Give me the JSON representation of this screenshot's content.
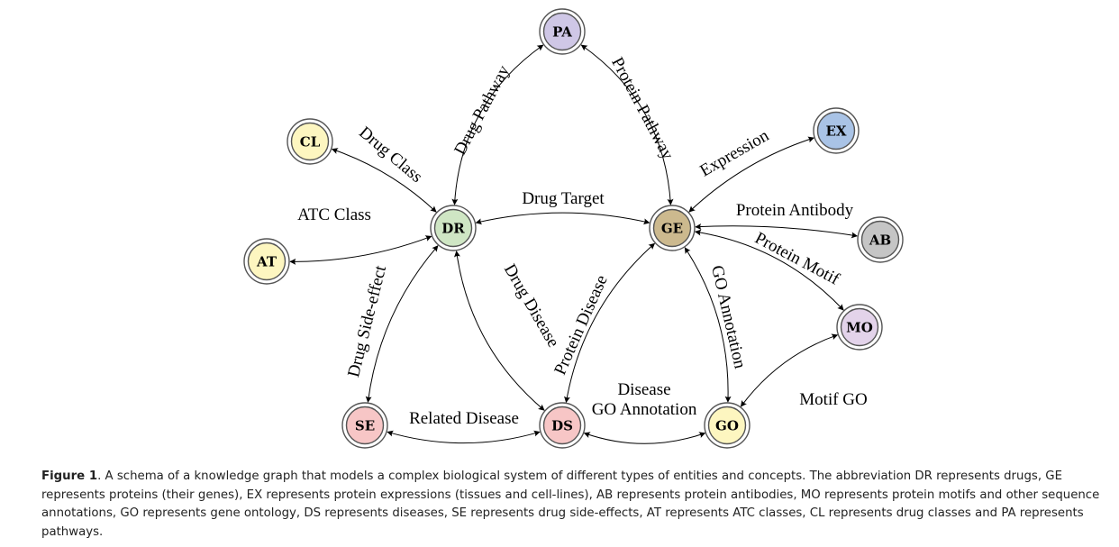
{
  "nodes": [
    {
      "id": "PA",
      "label": "PA",
      "color": "#cfc7e6"
    },
    {
      "id": "CL",
      "label": "CL",
      "color": "#fdf6c0"
    },
    {
      "id": "EX",
      "label": "EX",
      "color": "#a9c3e6"
    },
    {
      "id": "DR",
      "label": "DR",
      "color": "#cfe6c4"
    },
    {
      "id": "GE",
      "label": "GE",
      "color": "#ccb98e"
    },
    {
      "id": "AT",
      "label": "AT",
      "color": "#fdf6c0"
    },
    {
      "id": "AB",
      "label": "AB",
      "color": "#c5c5c5"
    },
    {
      "id": "MO",
      "label": "MO",
      "color": "#e3d3ea"
    },
    {
      "id": "SE",
      "label": "SE",
      "color": "#f7c6c6"
    },
    {
      "id": "DS",
      "label": "DS",
      "color": "#f7c6c6"
    },
    {
      "id": "GO",
      "label": "GO",
      "color": "#fdf6c0"
    }
  ],
  "edges": [
    {
      "id": "dr-pa",
      "from": "DR",
      "to": "PA",
      "label": "Drug Pathway"
    },
    {
      "id": "ge-pa",
      "from": "GE",
      "to": "PA",
      "label": "Protein Pathway"
    },
    {
      "id": "dr-cl",
      "from": "DR",
      "to": "CL",
      "label": "Drug Class"
    },
    {
      "id": "ge-ex",
      "from": "GE",
      "to": "EX",
      "label": "Expression"
    },
    {
      "id": "dr-ge",
      "from": "DR",
      "to": "GE",
      "label": "Drug Target"
    },
    {
      "id": "dr-at",
      "from": "DR",
      "to": "AT",
      "label": "ATC Class"
    },
    {
      "id": "ge-ab",
      "from": "GE",
      "to": "AB",
      "label": "Protein Antibody"
    },
    {
      "id": "ge-mo",
      "from": "GE",
      "to": "MO",
      "label": "Protein Motif"
    },
    {
      "id": "dr-se",
      "from": "DR",
      "to": "SE",
      "label": "Drug Side-effect"
    },
    {
      "id": "dr-ds",
      "from": "DR",
      "to": "DS",
      "label": "Drug Disease"
    },
    {
      "id": "ge-ds",
      "from": "GE",
      "to": "DS",
      "label": "Protein Disease"
    },
    {
      "id": "ge-go",
      "from": "GE",
      "to": "GO",
      "label": "GO Annotation"
    },
    {
      "id": "mo-go",
      "from": "MO",
      "to": "GO",
      "label": "Motif GO"
    },
    {
      "id": "se-ds",
      "from": "SE",
      "to": "DS",
      "label": "Related Disease"
    },
    {
      "id": "ds-go",
      "from": "DS",
      "to": "GO",
      "label": "Disease\nGO Annotation"
    }
  ],
  "caption": {
    "label": "Figure 1",
    "text": ".   A schema of a knowledge graph that models a complex biological system of different types of entities and concepts. The abbreviation DR represents drugs, GE represents proteins (their genes), EX represents protein expressions (tissues and cell-lines), AB represents protein antibodies, MO represents protein motifs and other sequence annotations, GO represents gene ontology, DS represents diseases, SE represents drug side-effects, AT represents ATC classes, CL represents drug classes and PA represents pathways."
  }
}
